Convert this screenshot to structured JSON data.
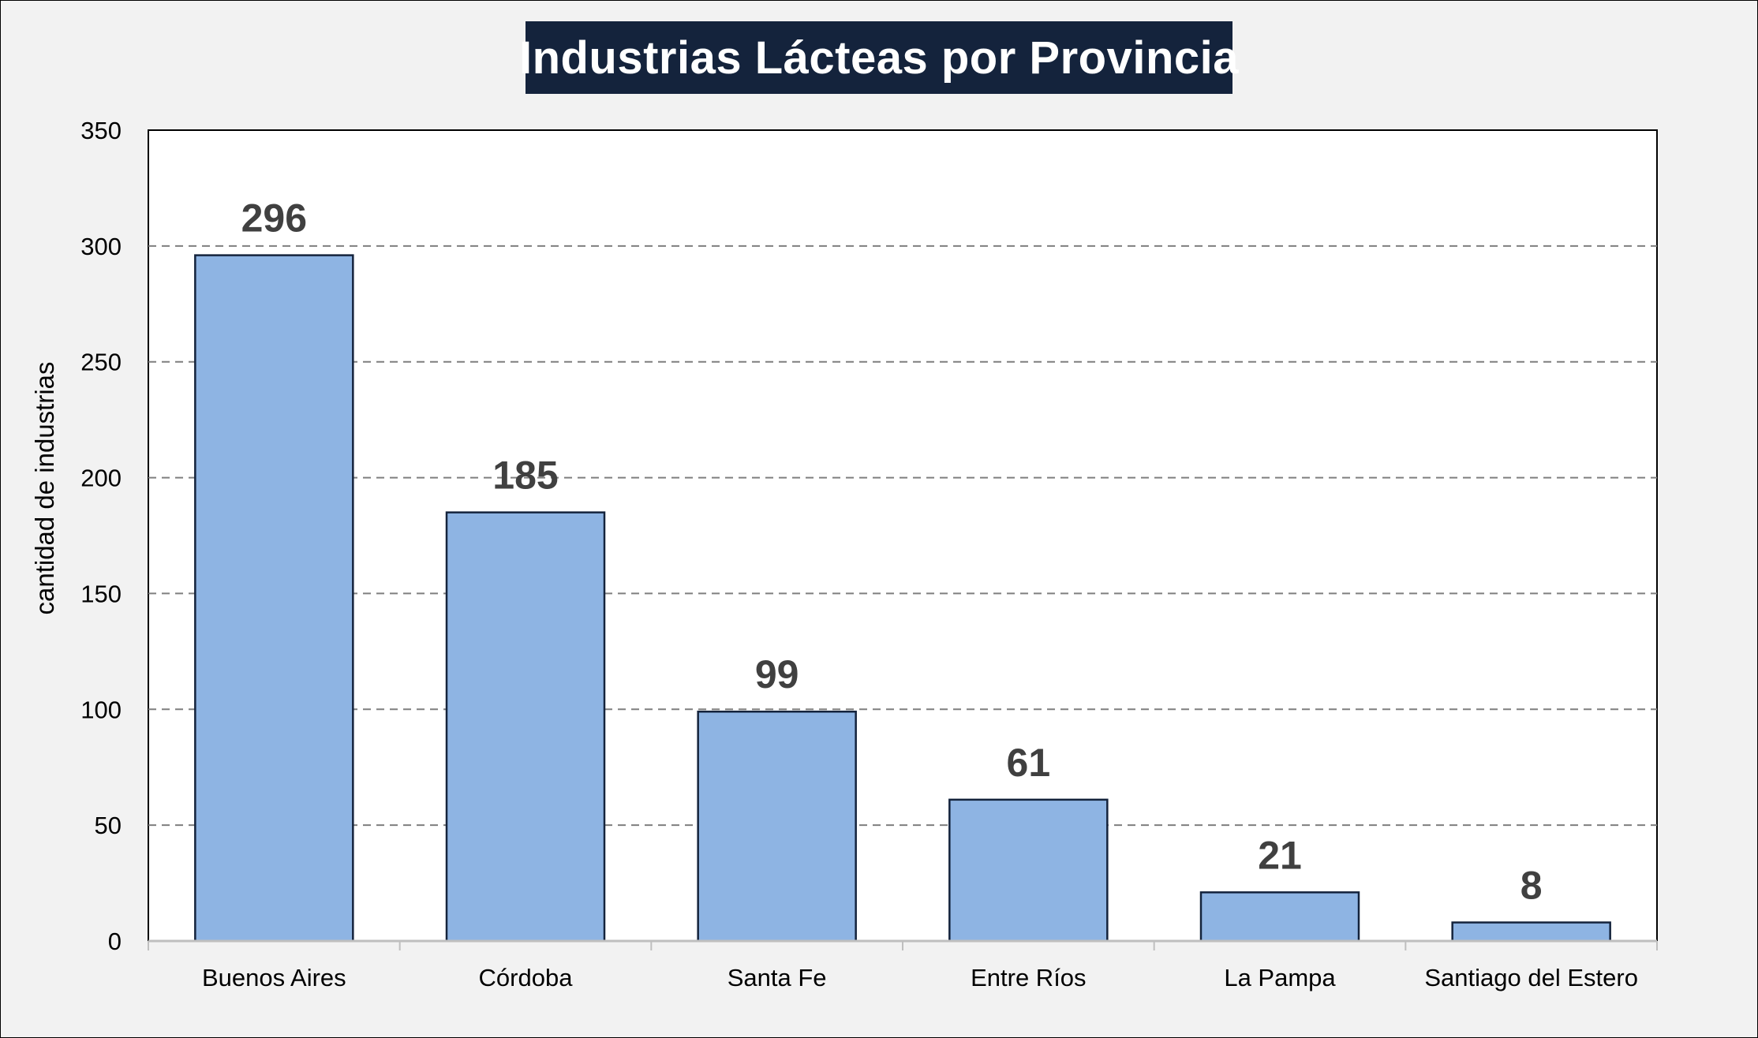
{
  "chart_data": {
    "type": "bar",
    "title": "Industrias Lácteas por Provincia",
    "xlabel": "",
    "ylabel": "cantidad de industrias",
    "categories": [
      "Buenos Aires",
      "Córdoba",
      "Santa Fe",
      "Entre Ríos",
      "La Pampa",
      "Santiago del Estero"
    ],
    "values": [
      296,
      185,
      99,
      61,
      21,
      8
    ],
    "ylim": [
      0,
      350
    ],
    "yticks": [
      0,
      50,
      100,
      150,
      200,
      250,
      300,
      350
    ],
    "grid": true,
    "grid_style": "dashed",
    "legend": "none",
    "data_labels": true
  },
  "colors": {
    "bar_fill": "#8eb4e3",
    "bar_stroke": "#14233c",
    "title_background": "#14233c",
    "title_text": "#ffffff",
    "data_label": "#404040",
    "grid": "#7f7f7f",
    "background": "#f2f2f2",
    "plot_background": "#ffffff"
  }
}
